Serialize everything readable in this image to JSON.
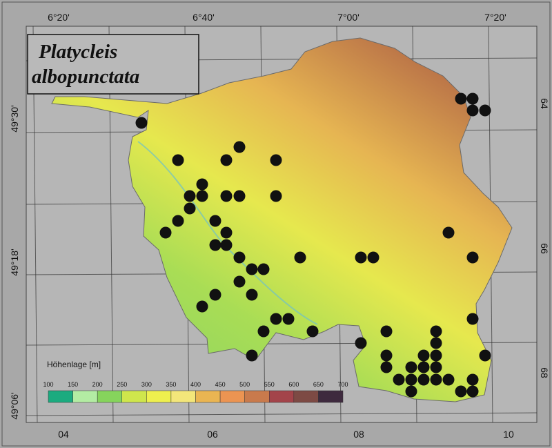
{
  "title_box": {
    "line1": "Platycleis",
    "line2": "albopunctata"
  },
  "frame": {
    "top": [
      "6°20'",
      "6°40'",
      "7°00'",
      "7°20'"
    ],
    "left": [
      "49°30'",
      "49°18'",
      "49°06'"
    ],
    "right": [
      "64",
      "66",
      "68"
    ],
    "bottom": [
      "04",
      "06",
      "08",
      "10"
    ]
  },
  "legend": {
    "title": "Höhenlage [m]",
    "ticks": [
      100,
      150,
      200,
      250,
      300,
      350,
      400,
      450,
      500,
      550,
      600,
      650,
      700
    ],
    "colors": [
      "#1bab7f",
      "#b3eca3",
      "#86d45c",
      "#cfe64c",
      "#eef04e",
      "#f3e67a",
      "#eab552",
      "#ec9452",
      "#c97a4c",
      "#a3444a",
      "#7d4a44",
      "#3e2a3e"
    ]
  }
}
